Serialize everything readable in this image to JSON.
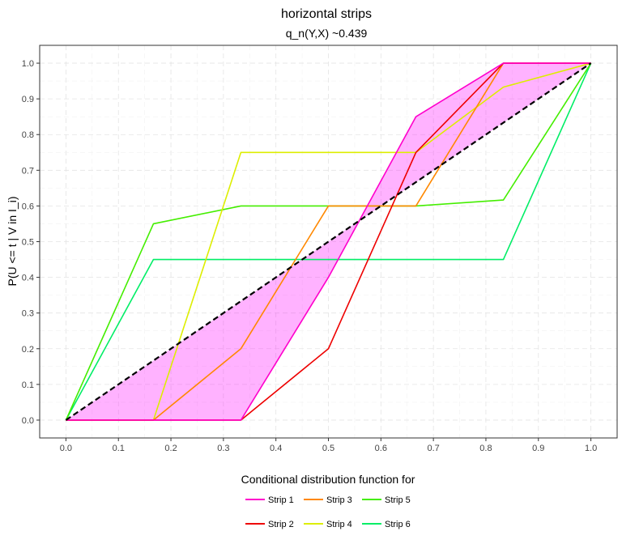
{
  "chart_data": {
    "type": "line",
    "title": "horizontal strips",
    "subtitle": "q_n(Y,X) ~0.439",
    "xlabel": "",
    "ylabel": "P(U <= t | V in I_i)",
    "xlim": [
      -0.05,
      1.05
    ],
    "ylim": [
      -0.05,
      1.05
    ],
    "x_ticks": [
      "0.0",
      "0.1",
      "0.2",
      "0.3",
      "0.4",
      "0.5",
      "0.6",
      "0.7",
      "0.8",
      "0.9",
      "1.0"
    ],
    "y_ticks": [
      "0.0",
      "0.1",
      "0.2",
      "0.3",
      "0.4",
      "0.5",
      "0.6",
      "0.7",
      "0.8",
      "0.9",
      "1.0"
    ],
    "grid": true,
    "legend_title": "Conditional distribution function for",
    "legend_position": "bottom",
    "series": [
      {
        "name": "Strip 1",
        "color": "#FF00CC",
        "x": [
          0,
          0.1667,
          0.3333,
          0.5,
          0.6667,
          0.8333,
          1.0
        ],
        "y": [
          0,
          0,
          0,
          0.4,
          0.85,
          1.0,
          1.0
        ]
      },
      {
        "name": "Strip 2",
        "color": "#EE0000",
        "x": [
          0,
          0.1667,
          0.3333,
          0.5,
          0.6667,
          0.8333,
          1.0
        ],
        "y": [
          0,
          0,
          0,
          0.2,
          0.75,
          1.0,
          1.0
        ]
      },
      {
        "name": "Strip 3",
        "color": "#FF8800",
        "x": [
          0,
          0.1667,
          0.3333,
          0.5,
          0.6667,
          0.8333,
          1.0
        ],
        "y": [
          0,
          0,
          0.2,
          0.6,
          0.6,
          1.0,
          1.0
        ]
      },
      {
        "name": "Strip 4",
        "color": "#DDEE00",
        "x": [
          0,
          0.1667,
          0.3333,
          0.5,
          0.6667,
          0.8333,
          1.0
        ],
        "y": [
          0,
          0,
          0.75,
          0.75,
          0.75,
          0.933,
          1.0
        ]
      },
      {
        "name": "Strip 5",
        "color": "#44EE00",
        "x": [
          0,
          0.1667,
          0.3333,
          0.5,
          0.6667,
          0.8333,
          1.0
        ],
        "y": [
          0,
          0.55,
          0.6,
          0.6,
          0.6,
          0.6167,
          1.0
        ]
      },
      {
        "name": "Strip 6",
        "color": "#00EE66",
        "x": [
          0,
          0.1667,
          0.3333,
          0.5,
          0.6667,
          0.8333,
          1.0
        ],
        "y": [
          0,
          0.45,
          0.45,
          0.45,
          0.45,
          0.45,
          1.0
        ]
      }
    ],
    "reference_line": {
      "x": [
        0,
        1
      ],
      "y": [
        0,
        1
      ],
      "style": "dashed",
      "color": "#000000"
    },
    "shaded_band": {
      "color": "#FF00FF",
      "opacity": 0.3,
      "between": [
        "Strip 1",
        "reference_line"
      ]
    }
  }
}
